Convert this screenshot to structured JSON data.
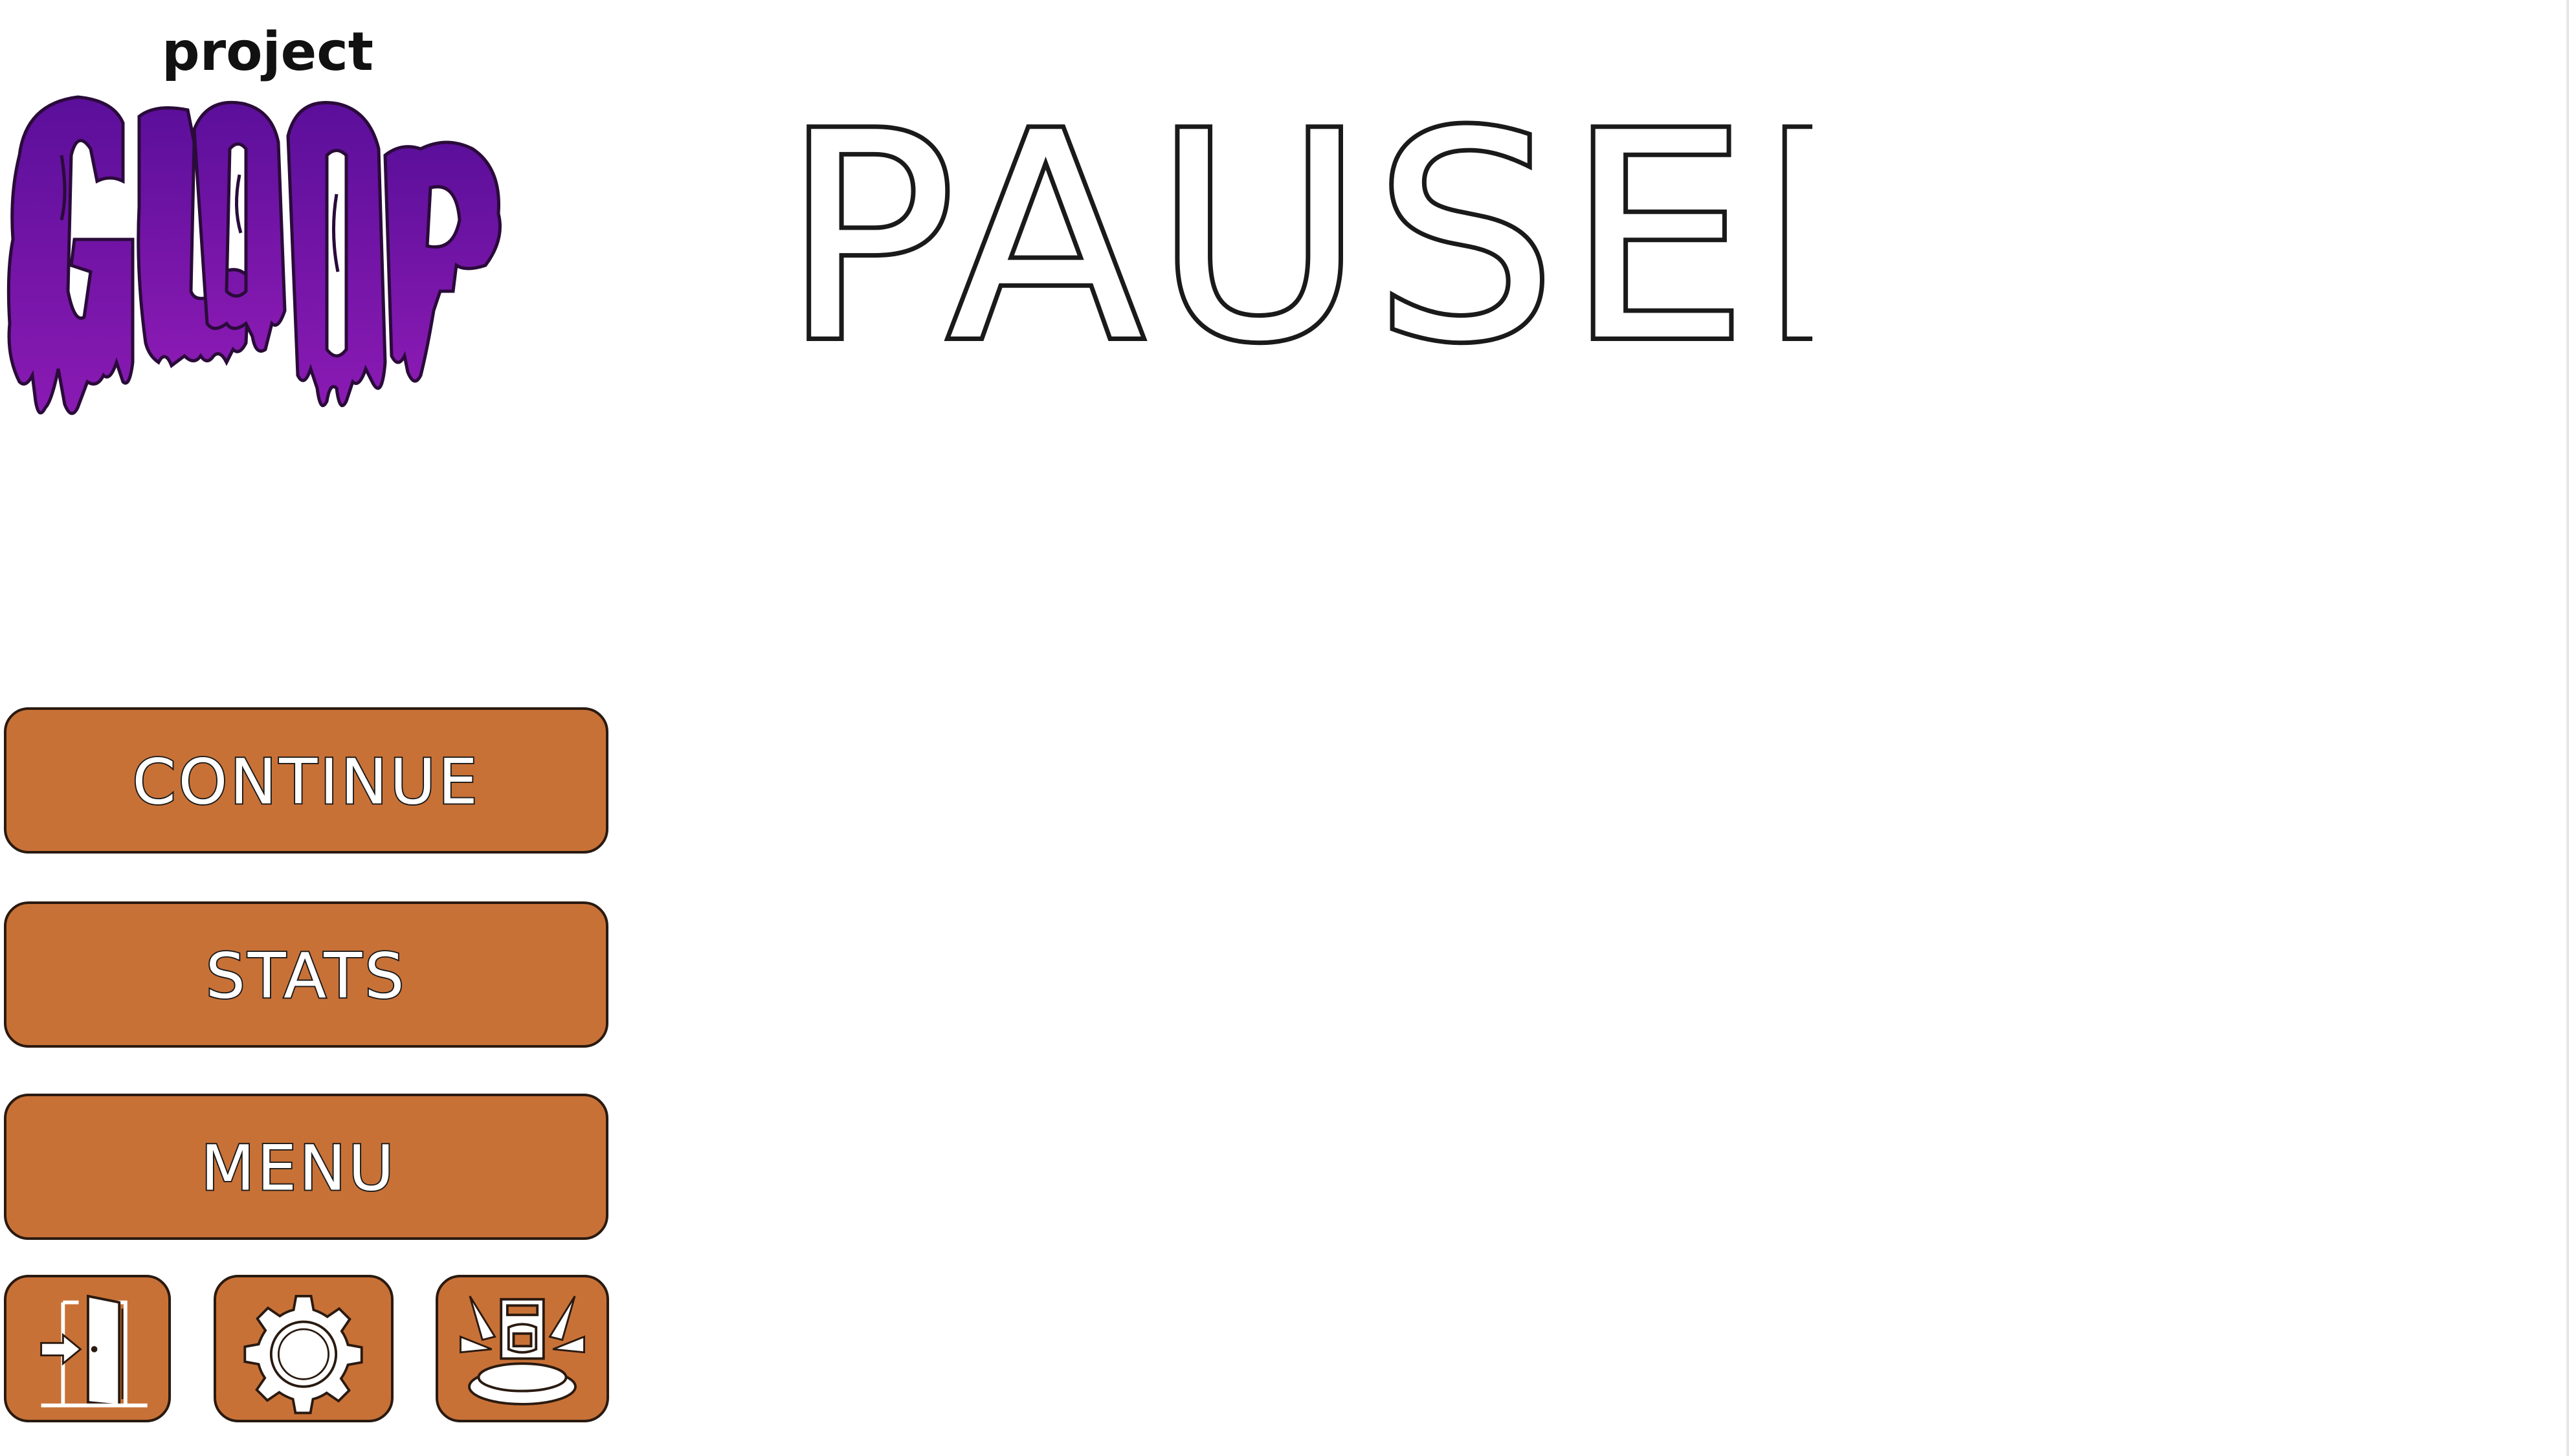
{
  "logo": {
    "small_text": "project",
    "word": "GLOOP",
    "color_top": "#5b0f9a",
    "color_bottom": "#8a1ab3",
    "outline": "#2a0b3a"
  },
  "title": {
    "text": "PAUSED"
  },
  "buttons": {
    "continue_label": "CONTINUE",
    "stats_label": "STATS",
    "menu_label": "MENU"
  },
  "icon_buttons": {
    "exit_icon": "exit-door-icon",
    "settings_icon": "gear-icon",
    "shop_icon": "vending-pedestal-icon"
  },
  "colors": {
    "button_fill": "#c87137",
    "button_border": "#2a1a10",
    "text_fill": "#ffffff",
    "text_outline": "#1a1a1a"
  }
}
